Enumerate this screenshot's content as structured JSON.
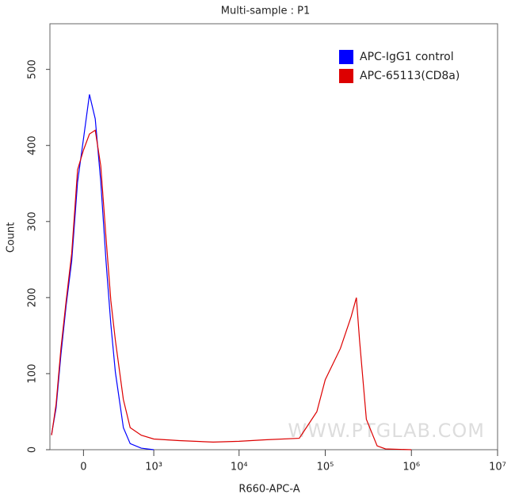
{
  "chart_data": {
    "type": "line",
    "title": "Multi-sample : P1",
    "xlabel": "R660-APC-A",
    "ylabel": "Count",
    "watermark": "WWW.PTGLAB.COM",
    "xscale": "biexponential",
    "xlim": [
      -320,
      10000000
    ],
    "xticks": [
      0,
      {
        "value": 1000,
        "label": "10³"
      },
      {
        "value": 10000,
        "label": "10⁴"
      },
      {
        "value": 100000,
        "label": "10⁵"
      },
      {
        "value": 1000000,
        "label": "10⁶"
      },
      {
        "value": 10000000,
        "label": "10⁷"
      }
    ],
    "ylim": [
      0,
      560
    ],
    "yticks": [
      0,
      100,
      200,
      300,
      400,
      500
    ],
    "legend": "upper right",
    "series": [
      {
        "name": "APC-IgG1 control",
        "color": "#0000ff",
        "x": [
          -300,
          -250,
          -200,
          -150,
          -100,
          -50,
          0,
          50,
          100,
          150,
          200,
          250,
          300,
          400,
          500,
          700,
          1000
        ],
        "values": [
          20,
          55,
          125,
          190,
          248,
          352,
          409,
          467,
          435,
          352,
          248,
          165,
          102,
          29,
          8,
          2,
          0
        ]
      },
      {
        "name": "APC-65113(CD8a)",
        "color": "#dd0000",
        "x": [
          -300,
          -250,
          -200,
          -150,
          -100,
          -50,
          0,
          50,
          100,
          150,
          200,
          250,
          300,
          400,
          500,
          700,
          1000,
          2000,
          5000,
          10000,
          20000,
          50000,
          80000,
          100000,
          150000,
          200000,
          230000,
          250000,
          300000,
          400000,
          500000,
          1000000
        ],
        "values": [
          19,
          60,
          133,
          196,
          258,
          368,
          394,
          415,
          420,
          373,
          279,
          196,
          144,
          66,
          29,
          19,
          14,
          12,
          10,
          11,
          13,
          15,
          50,
          92,
          133,
          175,
          200,
          144,
          40,
          5,
          1,
          0
        ]
      }
    ]
  }
}
